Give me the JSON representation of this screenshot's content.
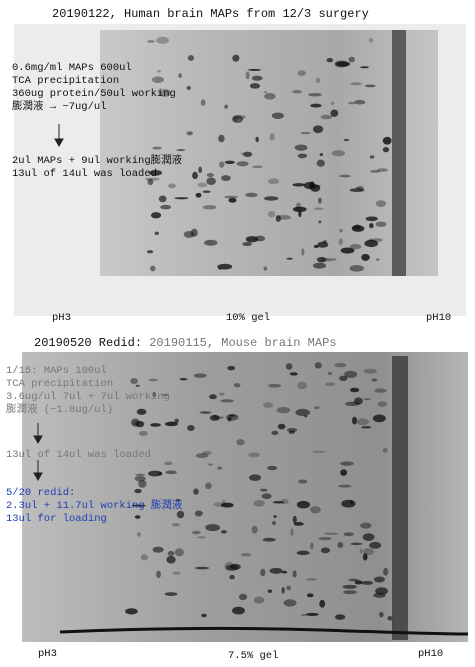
{
  "panels": [
    {
      "title": "20190122, Human brain MAPs from 12/3 surgery",
      "notes": [
        "0.6mg/ml MAPs 600ul",
        "TCA precipitation",
        "360ug protein/50ul working",
        "膨潤液  →  ~7ug/ul"
      ],
      "result_notes": [
        "2ul MAPs + 9ul working膨潤液",
        "13ul of 14ul was loaded"
      ],
      "labels": {
        "left": "pH3",
        "center": "10% gel",
        "right": "pH10"
      }
    },
    {
      "title": "20190520 Redid:",
      "subtitle": "20190115, Mouse brain MAPs",
      "notes": [
        "1/15: MAPs 100ul",
        "TCA precipitation",
        "3.6ug/ul 7ul + 7ul working",
        "膨潤液 (~1.8ug/ul)"
      ],
      "result_notes": [
        "13ul of 14ul was loaded"
      ],
      "redo_notes": [
        "5/20 redid:",
        "2.3ul + 11.7ul working 膨潤液",
        "13ul for loading"
      ],
      "labels": {
        "left": "pH3",
        "center": "7.5% gel",
        "right": "pH10"
      }
    }
  ]
}
